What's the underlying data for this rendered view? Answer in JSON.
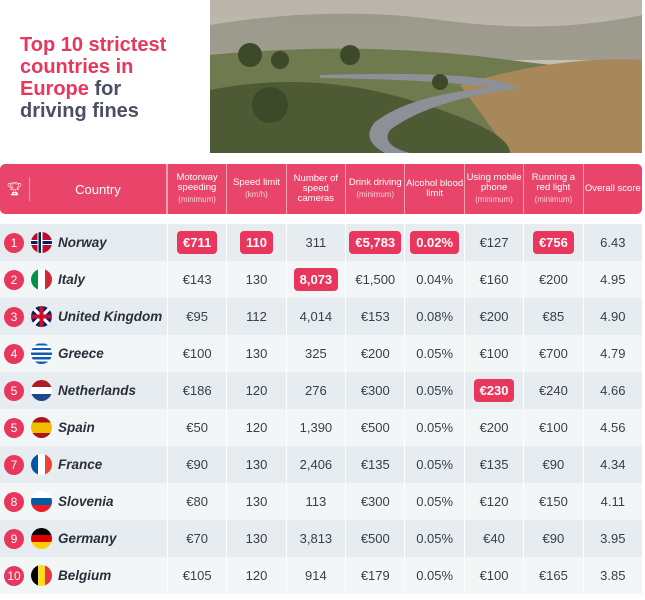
{
  "title": {
    "line1": "Top 10 strictest",
    "line2": "countries in",
    "line3a": "Europe",
    "line3b": " for",
    "line4": "driving fines"
  },
  "header": {
    "country": "Country",
    "trophy_icon": "trophy-icon",
    "columns": [
      {
        "label": "Motorway speeding",
        "sub": "(minimum)"
      },
      {
        "label": "Speed limit",
        "sub": "(km/h)"
      },
      {
        "label": "Number of speed cameras",
        "sub": ""
      },
      {
        "label": "Drink driving",
        "sub": "(minimum)"
      },
      {
        "label": "Alcohol blood limit",
        "sub": ""
      },
      {
        "label": "Using mobile phone",
        "sub": "(minimum)"
      },
      {
        "label": "Running a red light",
        "sub": "(minimum)"
      },
      {
        "label": "Overall score",
        "sub": ""
      }
    ]
  },
  "rows": [
    {
      "rank": "1",
      "country": "Norway",
      "flag": "norway",
      "cells": [
        {
          "v": "€711",
          "hl": true
        },
        {
          "v": "110",
          "hl": true
        },
        {
          "v": "311"
        },
        {
          "v": "€5,783",
          "hl": true
        },
        {
          "v": "0.02%",
          "hl": true
        },
        {
          "v": "€127"
        },
        {
          "v": "€756",
          "hl": true
        },
        {
          "v": "6.43"
        }
      ]
    },
    {
      "rank": "2",
      "country": "Italy",
      "flag": "italy",
      "cells": [
        {
          "v": "€143"
        },
        {
          "v": "130"
        },
        {
          "v": "8,073",
          "hl": true
        },
        {
          "v": "€1,500"
        },
        {
          "v": "0.04%"
        },
        {
          "v": "€160"
        },
        {
          "v": "€200"
        },
        {
          "v": "4.95"
        }
      ]
    },
    {
      "rank": "3",
      "country": "United Kingdom",
      "flag": "uk",
      "cells": [
        {
          "v": "€95"
        },
        {
          "v": "112"
        },
        {
          "v": "4,014"
        },
        {
          "v": "€153"
        },
        {
          "v": "0.08%"
        },
        {
          "v": "€200"
        },
        {
          "v": "€85"
        },
        {
          "v": "4.90"
        }
      ]
    },
    {
      "rank": "4",
      "country": "Greece",
      "flag": "greece",
      "cells": [
        {
          "v": "€100"
        },
        {
          "v": "130"
        },
        {
          "v": "325"
        },
        {
          "v": "€200"
        },
        {
          "v": "0.05%"
        },
        {
          "v": "€100"
        },
        {
          "v": "€700"
        },
        {
          "v": "4.79"
        }
      ]
    },
    {
      "rank": "5",
      "country": "Netherlands",
      "flag": "netherlands",
      "cells": [
        {
          "v": "€186"
        },
        {
          "v": "120"
        },
        {
          "v": "276"
        },
        {
          "v": "€300"
        },
        {
          "v": "0.05%"
        },
        {
          "v": "€230",
          "hl": true
        },
        {
          "v": "€240"
        },
        {
          "v": "4.66"
        }
      ]
    },
    {
      "rank": "5",
      "country": "Spain",
      "flag": "spain",
      "cells": [
        {
          "v": "€50"
        },
        {
          "v": "120"
        },
        {
          "v": "1,390"
        },
        {
          "v": "€500"
        },
        {
          "v": "0.05%"
        },
        {
          "v": "€200"
        },
        {
          "v": "€100"
        },
        {
          "v": "4.56"
        }
      ]
    },
    {
      "rank": "7",
      "country": "France",
      "flag": "france",
      "cells": [
        {
          "v": "€90"
        },
        {
          "v": "130"
        },
        {
          "v": "2,406"
        },
        {
          "v": "€135"
        },
        {
          "v": "0.05%"
        },
        {
          "v": "€135"
        },
        {
          "v": "€90"
        },
        {
          "v": "4.34"
        }
      ]
    },
    {
      "rank": "8",
      "country": "Slovenia",
      "flag": "slovenia",
      "cells": [
        {
          "v": "€80"
        },
        {
          "v": "130"
        },
        {
          "v": "113"
        },
        {
          "v": "€300"
        },
        {
          "v": "0.05%"
        },
        {
          "v": "€120"
        },
        {
          "v": "€150"
        },
        {
          "v": "4.11"
        }
      ]
    },
    {
      "rank": "9",
      "country": "Germany",
      "flag": "germany",
      "cells": [
        {
          "v": "€70"
        },
        {
          "v": "130"
        },
        {
          "v": "3,813"
        },
        {
          "v": "€500"
        },
        {
          "v": "0.05%"
        },
        {
          "v": "€40"
        },
        {
          "v": "€90"
        },
        {
          "v": "3.95"
        }
      ]
    },
    {
      "rank": "10",
      "country": "Belgium",
      "flag": "belgium",
      "cells": [
        {
          "v": "€105"
        },
        {
          "v": "120"
        },
        {
          "v": "914"
        },
        {
          "v": "€179"
        },
        {
          "v": "0.05%"
        },
        {
          "v": "€100"
        },
        {
          "v": "€165"
        },
        {
          "v": "3.85"
        }
      ]
    }
  ],
  "colors": {
    "accent": "#e8365d",
    "header": "#e9456a",
    "dark": "#4a4f63"
  }
}
